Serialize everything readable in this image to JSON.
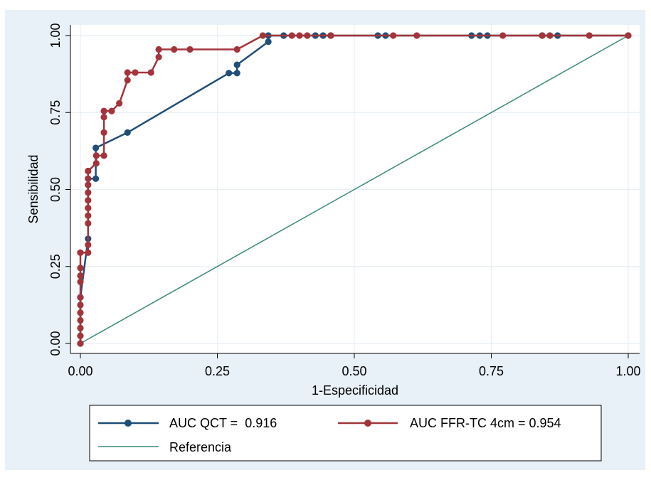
{
  "chart_data": {
    "type": "line",
    "title": "",
    "xlabel": "1-Especificidad",
    "ylabel": "Sensibilidad",
    "xlim": [
      0,
      1
    ],
    "ylim": [
      0,
      1
    ],
    "xticks": [
      "0.00",
      "0.25",
      "0.50",
      "0.75",
      "1.00"
    ],
    "yticks": [
      "0.00",
      "0.25",
      "0.50",
      "0.75",
      "1.00"
    ],
    "grid": true,
    "legend_position": "bottom",
    "colors": {
      "outer_background": "#e8f1f8",
      "plot_background": "#ffffff",
      "grid": "#e6eef5",
      "qct": "#1f4e79",
      "ffr": "#a3343b",
      "reference": "#3a8a7c"
    },
    "series": [
      {
        "name": "AUC QCT =  0.916",
        "markers": true,
        "x": [
          0,
          0,
          0.014,
          0.014,
          0.028,
          0.028,
          0.086,
          0.271,
          0.286,
          0.286,
          0.343,
          0.343,
          0.371,
          0.429,
          0.443,
          0.457,
          0.543,
          0.557,
          0.714,
          0.729,
          0.743,
          0.843,
          0.871,
          1.0
        ],
        "y": [
          0,
          0.15,
          0.34,
          0.535,
          0.535,
          0.635,
          0.685,
          0.878,
          0.878,
          0.905,
          0.98,
          1.0,
          1.0,
          1.0,
          1.0,
          1.0,
          1.0,
          1.0,
          1.0,
          1.0,
          1.0,
          1.0,
          1.0,
          1.0
        ]
      },
      {
        "name": "AUC FFR-TC 4cm = 0.954",
        "markers": true,
        "x": [
          0,
          0,
          0,
          0,
          0,
          0,
          0,
          0,
          0,
          0,
          0,
          0,
          0.014,
          0.014,
          0.014,
          0.014,
          0.014,
          0.014,
          0.014,
          0.014,
          0.014,
          0.014,
          0.014,
          0.029,
          0.029,
          0.043,
          0.043,
          0.043,
          0.043,
          0.057,
          0.071,
          0.086,
          0.086,
          0.1,
          0.129,
          0.143,
          0.143,
          0.171,
          0.2,
          0.286,
          0.333,
          0.386,
          0.4,
          0.414,
          0.457,
          0.571,
          0.614,
          0.771,
          0.843,
          0.857,
          0.929,
          1.0
        ],
        "y": [
          0,
          0.025,
          0.05,
          0.075,
          0.1,
          0.125,
          0.15,
          0.2,
          0.22,
          0.245,
          0.295,
          0.295,
          0.295,
          0.32,
          0.39,
          0.415,
          0.44,
          0.465,
          0.49,
          0.515,
          0.535,
          0.56,
          0.56,
          0.585,
          0.61,
          0.61,
          0.685,
          0.735,
          0.755,
          0.755,
          0.78,
          0.855,
          0.88,
          0.88,
          0.88,
          0.93,
          0.955,
          0.955,
          0.955,
          0.955,
          1.0,
          1.0,
          1.0,
          1.0,
          1.0,
          1.0,
          1.0,
          1.0,
          1.0,
          1.0,
          1.0,
          1.0
        ]
      },
      {
        "name": "Referencia",
        "markers": false,
        "x": [
          0,
          1
        ],
        "y": [
          0,
          1
        ]
      }
    ]
  }
}
